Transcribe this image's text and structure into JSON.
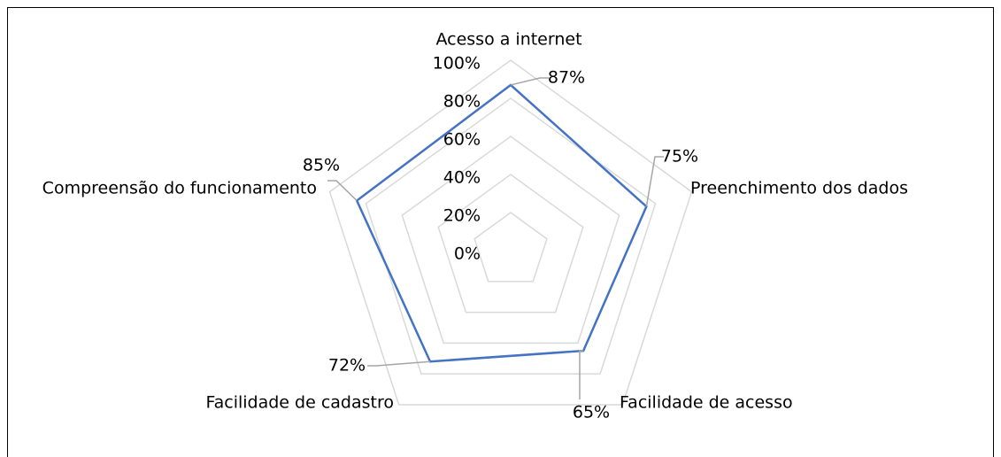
{
  "chart_data": {
    "type": "radar",
    "categories": [
      "Acesso a internet",
      "Preenchimento dos dados",
      "Facilidade de acesso",
      "Facilidade de cadastro",
      "Compreensão do funcionamento"
    ],
    "values": [
      87,
      75,
      65,
      72,
      85
    ],
    "value_labels": [
      "87%",
      "75%",
      "65%",
      "72%",
      "85%"
    ],
    "color": "#4472c4",
    "ylim": [
      0,
      100
    ],
    "yticks": [
      {
        "value": 0,
        "label": "0%"
      },
      {
        "value": 20,
        "label": "20%"
      },
      {
        "value": 40,
        "label": "40%"
      },
      {
        "value": 60,
        "label": "60%"
      },
      {
        "value": 80,
        "label": "80%"
      },
      {
        "value": 100,
        "label": "100%"
      }
    ],
    "grid": true
  }
}
